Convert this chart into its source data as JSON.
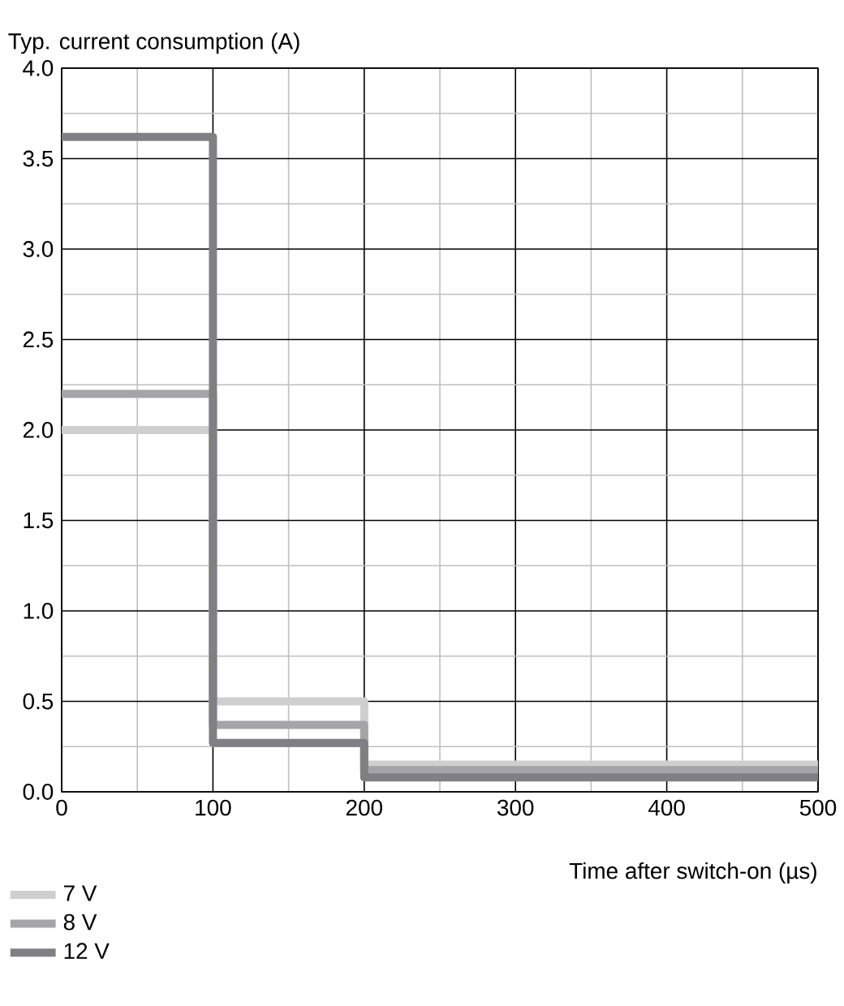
{
  "chart_data": {
    "type": "step",
    "xlabel": "Time after switch-on (µs)",
    "ylabel": "Typ. current consumption (A)",
    "x": [
      0,
      100,
      200,
      500
    ],
    "series": [
      {
        "name": "7 V",
        "color": "#cfcfcf",
        "values": [
          2.0,
          0.5,
          0.15,
          0.15
        ]
      },
      {
        "name": "8 V",
        "color": "#a5a5a7",
        "values": [
          2.2,
          0.37,
          0.12,
          0.12
        ]
      },
      {
        "name": "12 V",
        "color": "#808084",
        "values": [
          3.62,
          0.27,
          0.08,
          0.08
        ]
      }
    ],
    "xlim": [
      0,
      500
    ],
    "ylim": [
      0,
      4
    ],
    "xticks": [
      0,
      {
        "value": 50,
        "label": null
      },
      100,
      {
        "value": 150,
        "label": null
      },
      200,
      {
        "value": 250,
        "label": null
      },
      300,
      {
        "value": 350,
        "label": null
      },
      400,
      {
        "value": 450,
        "label": null
      },
      500
    ],
    "yticks": [
      {
        "value": 0,
        "label": "0.0"
      },
      {
        "value": 0.25,
        "label": null
      },
      {
        "value": 0.5,
        "label": "0.5"
      },
      {
        "value": 0.75,
        "label": null
      },
      {
        "value": 1,
        "label": "1.0"
      },
      {
        "value": 1.25,
        "label": null
      },
      {
        "value": 1.5,
        "label": "1.5"
      },
      {
        "value": 1.75,
        "label": null
      },
      {
        "value": 2,
        "label": "2.0"
      },
      {
        "value": 2.25,
        "label": null
      },
      {
        "value": 2.5,
        "label": "2.5"
      },
      {
        "value": 2.75,
        "label": null
      },
      {
        "value": 3,
        "label": "3.0"
      },
      {
        "value": 3.25,
        "label": null
      },
      {
        "value": 3.5,
        "label": "3.5"
      },
      {
        "value": 3.75,
        "label": null
      },
      {
        "value": 4,
        "label": "4.0"
      }
    ],
    "grid": true,
    "legend": "bottom left",
    "line_style": "solid",
    "marker": "none"
  }
}
